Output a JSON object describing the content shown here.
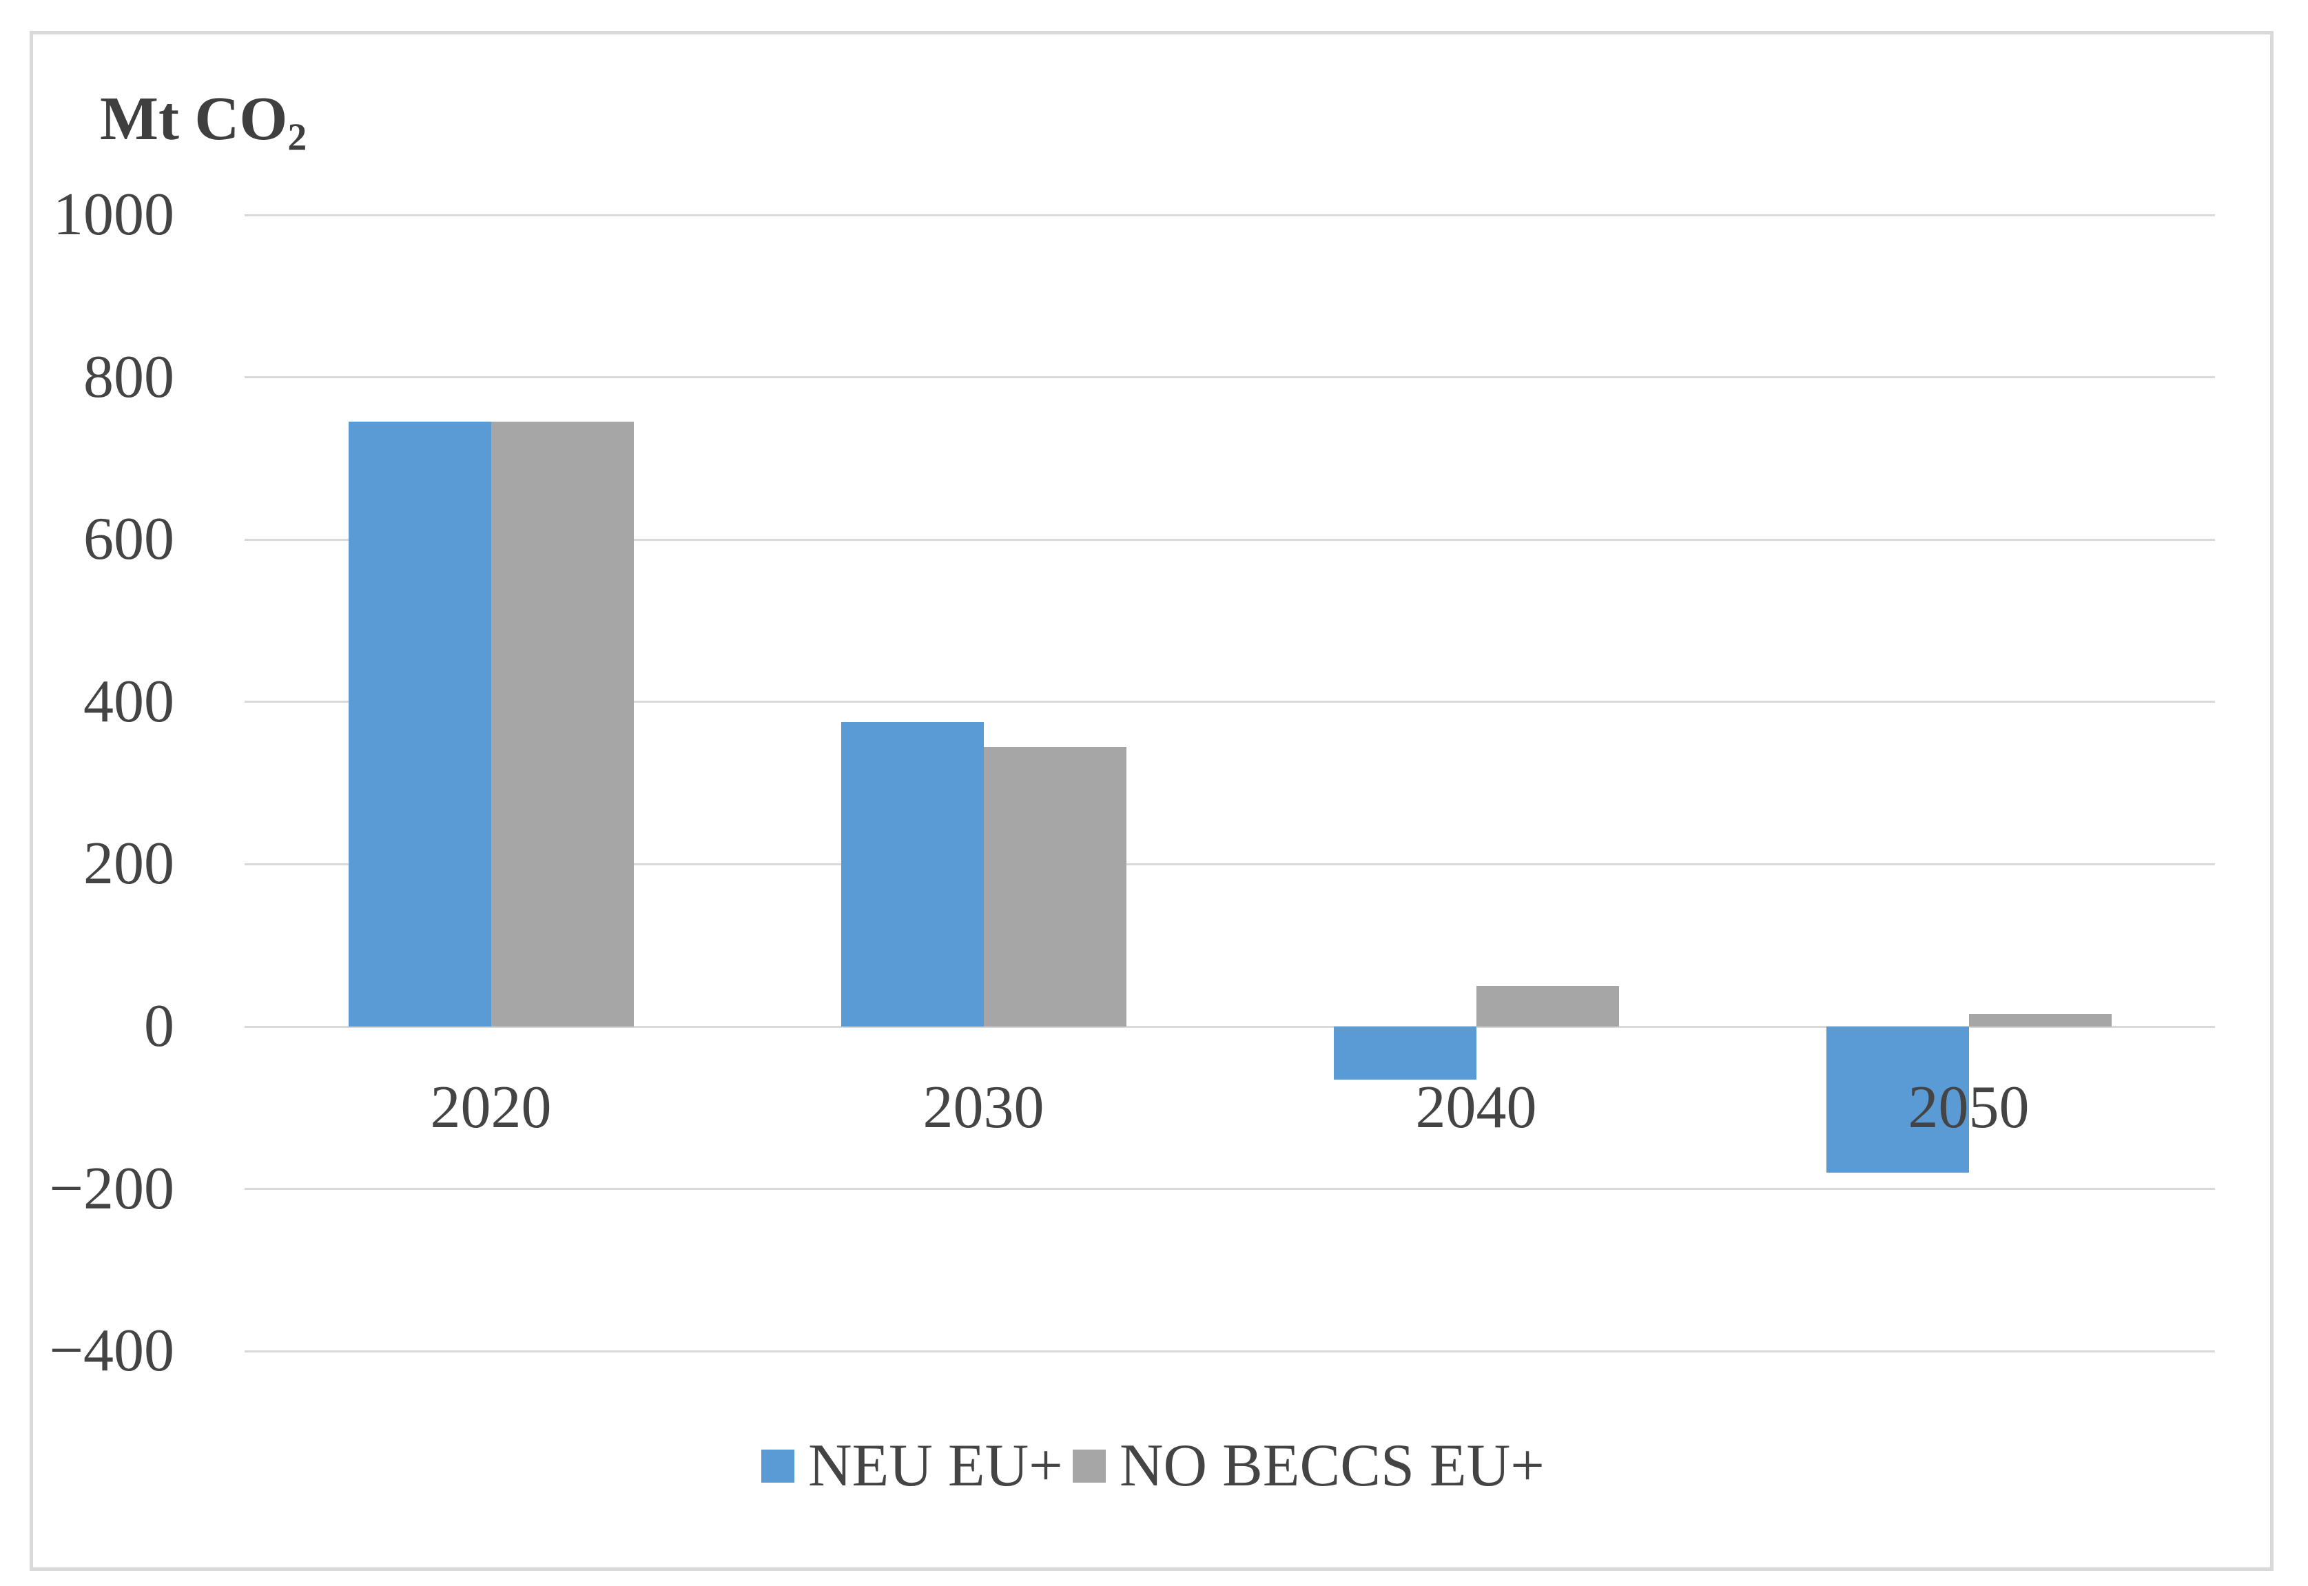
{
  "figure": {
    "title_main": "Mt CO",
    "title_sub": "2"
  },
  "legend": [
    {
      "label": "NEU EU+",
      "color": "#5B9BD5"
    },
    {
      "label": "NO BECCS EU+",
      "color": "#A6A6A6"
    }
  ],
  "colors": {
    "series_blue": "#5B9BD5",
    "series_gray": "#A6A6A6",
    "gridline": "#D9D9D9",
    "frame_border": "#D9D9D9",
    "text": "#404040"
  },
  "chart_data": {
    "type": "bar",
    "title": "Mt CO2",
    "ylabel": "Mt CO2",
    "categories": [
      "2020",
      "2030",
      "2040",
      "2050"
    ],
    "series": [
      {
        "name": "NEU EU+",
        "color": "#5B9BD5",
        "values": [
          745,
          375,
          -65,
          -180
        ]
      },
      {
        "name": "NO BECCS EU+",
        "color": "#A6A6A6",
        "values": [
          745,
          345,
          50,
          15
        ]
      }
    ],
    "ylim": [
      -400,
      1000
    ],
    "yticks": [
      1000,
      800,
      600,
      400,
      200,
      0,
      -200,
      -400
    ],
    "ytick_labels": [
      "1000",
      "800",
      "600",
      "400",
      "200",
      "0",
      "−200",
      "−400"
    ],
    "grid": true,
    "legend_position": "bottom"
  }
}
